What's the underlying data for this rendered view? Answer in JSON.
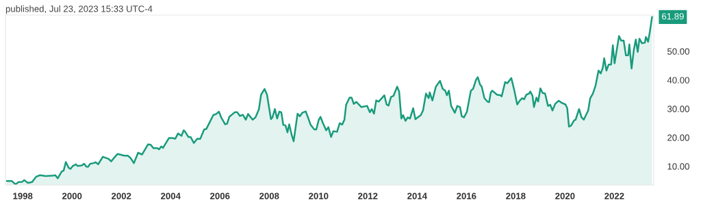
{
  "chart_data": {
    "type": "area",
    "annotations": [
      "published, Jul 23, 2023 15:33 UTC-4",
      {
        "text": "61.89",
        "x": 2023.53,
        "y": 61.89
      }
    ],
    "x": [
      1997.36,
      1997.55,
      1997.71,
      1997.83,
      1997.98,
      1998.06,
      1998.21,
      1998.38,
      1998.55,
      1998.7,
      1998.93,
      1999.26,
      1999.32,
      1999.42,
      1999.58,
      1999.66,
      1999.75,
      1999.86,
      1999.94,
      2000.03,
      2000.16,
      2000.23,
      2000.4,
      2000.49,
      2000.58,
      2000.65,
      2000.74,
      2000.88,
      2000.95,
      2001.06,
      2001.25,
      2001.48,
      2001.59,
      2001.68,
      2001.85,
      2001.99,
      2002.12,
      2002.26,
      2002.37,
      2002.51,
      2002.68,
      2002.84,
      2003.08,
      2003.19,
      2003.3,
      2003.46,
      2003.53,
      2003.62,
      2003.69,
      2003.93,
      2004.07,
      2004.19,
      2004.3,
      2004.44,
      2004.53,
      2004.59,
      2004.72,
      2004.81,
      2004.94,
      2005.08,
      2005.2,
      2005.36,
      2005.45,
      2005.59,
      2005.73,
      2005.85,
      2005.96,
      2006.05,
      2006.21,
      2006.29,
      2006.38,
      2006.52,
      2006.61,
      2006.7,
      2006.81,
      2006.93,
      2007.05,
      2007.14,
      2007.33,
      2007.44,
      2007.58,
      2007.67,
      2007.81,
      2007.91,
      2008.07,
      2008.13,
      2008.23,
      2008.32,
      2008.41,
      2008.49,
      2008.57,
      2008.66,
      2008.74,
      2008.81,
      2008.92,
      2008.99,
      2009.15,
      2009.24,
      2009.34,
      2009.48,
      2009.59,
      2009.68,
      2009.83,
      2009.91,
      2010.01,
      2010.08,
      2010.17,
      2010.31,
      2010.4,
      2010.51,
      2010.6,
      2010.75,
      2010.86,
      2010.96,
      2011.05,
      2011.12,
      2011.26,
      2011.34,
      2011.43,
      2011.53,
      2011.74,
      2011.97,
      2012.08,
      2012.16,
      2012.25,
      2012.34,
      2012.44,
      2012.67,
      2012.76,
      2012.84,
      2012.94,
      2013.04,
      2013.19,
      2013.27,
      2013.36,
      2013.43,
      2013.53,
      2013.62,
      2013.71,
      2013.84,
      2013.93,
      2014.15,
      2014.24,
      2014.36,
      2014.47,
      2014.51,
      2014.62,
      2014.76,
      2014.93,
      2015.04,
      2015.14,
      2015.21,
      2015.29,
      2015.38,
      2015.53,
      2015.63,
      2015.74,
      2015.81,
      2015.9,
      2016.02,
      2016.18,
      2016.27,
      2016.39,
      2016.46,
      2016.55,
      2016.62,
      2016.73,
      2016.85,
      2016.92,
      2016.99,
      2017.05,
      2017.24,
      2017.38,
      2017.43,
      2017.57,
      2017.66,
      2017.82,
      2017.94,
      2018.06,
      2018.17,
      2018.26,
      2018.34,
      2018.43,
      2018.54,
      2018.59,
      2018.68,
      2018.74,
      2018.84,
      2018.91,
      2019.0,
      2019.09,
      2019.19,
      2019.31,
      2019.4,
      2019.49,
      2019.6,
      2019.74,
      2019.88,
      2020.02,
      2020.09,
      2020.16,
      2020.25,
      2020.37,
      2020.43,
      2020.57,
      2020.67,
      2020.76,
      2020.94,
      2021.02,
      2021.13,
      2021.24,
      2021.36,
      2021.45,
      2021.53,
      2021.59,
      2021.68,
      2021.77,
      2021.87,
      2021.94,
      2022.01,
      2022.19,
      2022.28,
      2022.38,
      2022.47,
      2022.56,
      2022.61,
      2022.7,
      2022.79,
      2022.87,
      2022.95,
      2023.02,
      2023.12,
      2023.24,
      2023.28,
      2023.37,
      2023.44,
      2023.53
    ],
    "series": [
      {
        "color": "#189b7c",
        "values": [
          4.9,
          4.9,
          3.7,
          4.5,
          4.6,
          5.2,
          4.2,
          4.5,
          6.4,
          6.9,
          6.6,
          6.8,
          6.9,
          5.8,
          8.2,
          8.5,
          11.5,
          9.5,
          9.1,
          10.1,
          10.7,
          10.1,
          10.3,
          10.9,
          9.9,
          9.8,
          10.9,
          11.1,
          11.4,
          10.7,
          13.3,
          12.6,
          11.7,
          12.7,
          14.3,
          14.0,
          13.7,
          13.7,
          12.9,
          11.1,
          14.7,
          14.1,
          17.6,
          17.5,
          16.3,
          16.3,
          15.9,
          16.9,
          16.4,
          19.8,
          19.8,
          19.6,
          21.4,
          20.6,
          22.5,
          22.0,
          20.2,
          20.2,
          18.1,
          19.6,
          19.5,
          22.8,
          23.0,
          25.4,
          27.8,
          28.2,
          29.0,
          27.0,
          24.6,
          24.8,
          27.2,
          28.2,
          28.8,
          28.8,
          27.5,
          27.9,
          26.2,
          28.2,
          26.2,
          27.0,
          29.8,
          34.9,
          36.9,
          34.9,
          26.4,
          27.0,
          29.9,
          26.6,
          29.0,
          28.8,
          24.4,
          24.2,
          21.8,
          24.6,
          20.6,
          18.7,
          28.3,
          27.4,
          28.6,
          29.1,
          26.6,
          24.4,
          22.8,
          22.8,
          26.2,
          27.2,
          25.2,
          22.5,
          23.6,
          20.2,
          22.2,
          22.0,
          25.0,
          24.5,
          26.2,
          31.4,
          33.9,
          33.9,
          31.7,
          32.4,
          30.6,
          31.0,
          28.8,
          29.9,
          28.3,
          32.9,
          32.5,
          34.7,
          31.5,
          31.1,
          34.1,
          34.5,
          37.7,
          36.0,
          26.6,
          27.8,
          25.8,
          27.0,
          26.6,
          30.2,
          26.4,
          27.8,
          29.4,
          35.3,
          33.7,
          35.7,
          32.9,
          37.7,
          39.7,
          36.9,
          36.3,
          34.7,
          36.3,
          31.0,
          28.6,
          31.0,
          30.6,
          27.4,
          27.0,
          29.0,
          36.3,
          36.9,
          40.1,
          41.0,
          38.5,
          37.7,
          33.7,
          32.5,
          32.3,
          35.7,
          36.3,
          34.9,
          34.7,
          34.3,
          39.3,
          38.9,
          40.7,
          36.5,
          31.5,
          32.9,
          33.7,
          33.3,
          34.9,
          35.3,
          36.0,
          34.5,
          30.6,
          33.9,
          32.5,
          37.1,
          35.5,
          35.3,
          31.0,
          31.4,
          29.4,
          31.7,
          32.8,
          32.0,
          31.5,
          30.2,
          23.8,
          24.2,
          26.0,
          26.2,
          29.9,
          27.0,
          26.2,
          29.4,
          33.6,
          35.3,
          38.1,
          43.3,
          42.3,
          44.2,
          47.6,
          43.3,
          45.4,
          45.4,
          52.1,
          45.8,
          55.3,
          53.7,
          53.7,
          48.6,
          48.6,
          52.4,
          44.0,
          50.4,
          54.1,
          49.8,
          54.4,
          52.8,
          53.0,
          55.0,
          53.3,
          56.7,
          61.89
        ]
      }
    ],
    "xlim": [
      1997.3,
      2023.6
    ],
    "ylim": [
      3.5,
      62.6
    ],
    "xticks": [
      1998,
      2000,
      2002,
      2004,
      2006,
      2008,
      2010,
      2012,
      2014,
      2016,
      2018,
      2020,
      2022
    ],
    "yticks": [
      {
        "value": 10,
        "label": "10.00"
      },
      {
        "value": 20,
        "label": "20.00"
      },
      {
        "value": 30,
        "label": "30.00"
      },
      {
        "value": 40,
        "label": "40.00"
      },
      {
        "value": 50,
        "label": "50.00"
      }
    ],
    "grid": false,
    "legend": false
  }
}
